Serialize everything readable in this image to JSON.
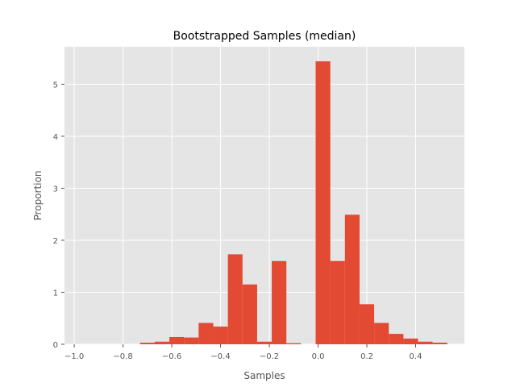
{
  "chart_data": {
    "type": "bar",
    "title": "Bootstrapped Samples (median)",
    "xlabel": "Samples",
    "ylabel": "Proportion",
    "xlim": [
      -1.04,
      0.6
    ],
    "ylim": [
      0,
      5.72
    ],
    "grid": true,
    "xticks": [
      -1.0,
      -0.8,
      -0.6,
      -0.4,
      -0.2,
      0.0,
      0.2,
      0.4
    ],
    "xtick_labels": [
      "−1.0",
      "−0.8",
      "−0.6",
      "−0.4",
      "−0.2",
      "0.0",
      "0.2",
      "0.4"
    ],
    "yticks": [
      0,
      1,
      2,
      3,
      4,
      5
    ],
    "ytick_labels": [
      "0",
      "1",
      "2",
      "3",
      "4",
      "5"
    ],
    "bin_width": 0.06,
    "bins": [
      {
        "x0": -1.0,
        "value": 0.0
      },
      {
        "x0": -0.94,
        "value": 0.0
      },
      {
        "x0": -0.88,
        "value": 0.0
      },
      {
        "x0": -0.82,
        "value": 0.0
      },
      {
        "x0": -0.76,
        "value": 0.0
      },
      {
        "x0": -0.73,
        "value": 0.03
      },
      {
        "x0": -0.67,
        "value": 0.05
      },
      {
        "x0": -0.61,
        "value": 0.14
      },
      {
        "x0": -0.55,
        "value": 0.13
      },
      {
        "x0": -0.49,
        "value": 0.41
      },
      {
        "x0": -0.43,
        "value": 0.34
      },
      {
        "x0": -0.37,
        "value": 1.73
      },
      {
        "x0": -0.31,
        "value": 1.15
      },
      {
        "x0": -0.25,
        "value": 0.05
      },
      {
        "x0": -0.19,
        "value": 1.6
      },
      {
        "x0": -0.13,
        "value": 0.02
      },
      {
        "x0": -0.07,
        "value": 0.0
      },
      {
        "x0": -0.01,
        "value": 5.44
      },
      {
        "x0": 0.05,
        "value": 1.6
      },
      {
        "x0": 0.11,
        "value": 2.49
      },
      {
        "x0": 0.17,
        "value": 0.77
      },
      {
        "x0": 0.23,
        "value": 0.41
      },
      {
        "x0": 0.29,
        "value": 0.2
      },
      {
        "x0": 0.35,
        "value": 0.11
      },
      {
        "x0": 0.41,
        "value": 0.05
      },
      {
        "x0": 0.47,
        "value": 0.03
      }
    ],
    "colors": {
      "bar": "#E24A33",
      "plot_bg": "#E5E5E5",
      "grid": "#FFFFFF",
      "text": "#555555"
    }
  }
}
